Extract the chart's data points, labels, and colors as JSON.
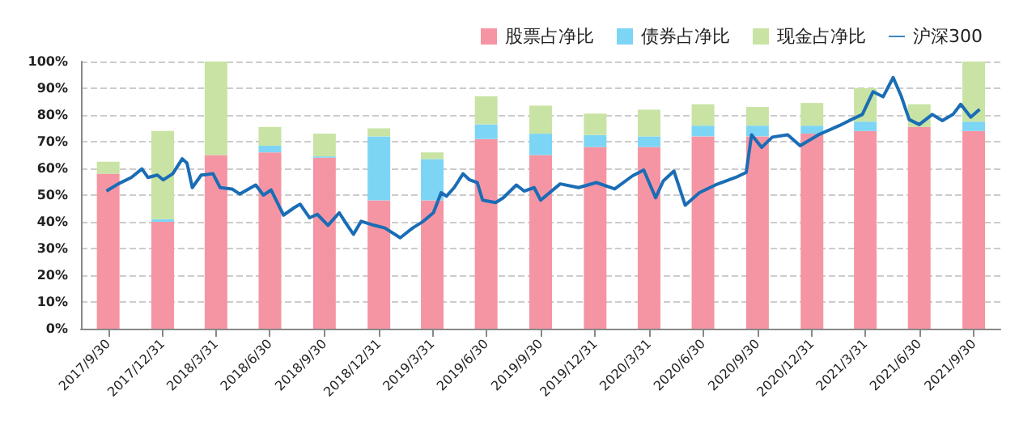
{
  "chart_data": {
    "type": "bar",
    "stacked": true,
    "x": [
      "2017-09-30",
      "2017-12-31",
      "2018-03-31",
      "2018-06-30",
      "2018-09-30",
      "2018-12-31",
      "2019-03-31",
      "2019-06-30",
      "2019-09-30",
      "2019-12-31",
      "2020-03-31",
      "2020-06-30",
      "2020-09-30",
      "2020-12-31",
      "2021-03-31",
      "2021-06-30",
      "2021-09-30"
    ],
    "xlim": [
      "2017-08-15",
      "2021-11-14"
    ],
    "xticks": [
      {
        "value": "2017-09-30",
        "label": "2017/9/30"
      },
      {
        "value": "2017-12-31",
        "label": "2017/12/31"
      },
      {
        "value": "2018-03-31",
        "label": "2018/3/31"
      },
      {
        "value": "2018-06-30",
        "label": "2018/6/30"
      },
      {
        "value": "2018-09-30",
        "label": "2018/9/30"
      },
      {
        "value": "2018-12-31",
        "label": "2018/12/31"
      },
      {
        "value": "2019-03-31",
        "label": "2019/3/31"
      },
      {
        "value": "2019-06-30",
        "label": "2019/6/30"
      },
      {
        "value": "2019-09-30",
        "label": "2019/9/30"
      },
      {
        "value": "2019-12-31",
        "label": "2019/12/31"
      },
      {
        "value": "2020-03-31",
        "label": "2020/3/31"
      },
      {
        "value": "2020-06-30",
        "label": "2020/6/30"
      },
      {
        "value": "2020-09-30",
        "label": "2020/9/30"
      },
      {
        "value": "2020-12-31",
        "label": "2020/12/31"
      },
      {
        "value": "2021-03-31",
        "label": "2021/3/31"
      },
      {
        "value": "2021-06-30",
        "label": "2021/6/30"
      },
      {
        "value": "2021-09-30",
        "label": "2021/9/30"
      }
    ],
    "series": [
      {
        "name": "股票占净比",
        "color": "#f595a3",
        "values": [
          58,
          40,
          65,
          66,
          64,
          48,
          48,
          71,
          65,
          68,
          68,
          72,
          72,
          73,
          74,
          75.5,
          74
        ]
      },
      {
        "name": "债券占净比",
        "color": "#7dd5f5",
        "values": [
          0,
          1,
          0,
          2.5,
          0.5,
          24,
          15.5,
          5.5,
          8,
          4.5,
          4,
          4,
          4,
          3,
          3.5,
          0,
          3.5
        ]
      },
      {
        "name": "现金占净比",
        "color": "#c8e3a3",
        "values": [
          4.5,
          33,
          35,
          7,
          8.5,
          3,
          2.5,
          10.5,
          10.5,
          8,
          10,
          8,
          7,
          8.5,
          12.5,
          8.5,
          22.5
        ]
      },
      {
        "name": "沪深300",
        "type": "line",
        "color": "#1a6db5",
        "x": [
          "2017-09-27",
          "2017-10-17",
          "2017-11-08",
          "2017-11-26",
          "2017-12-06",
          "2017-12-22",
          "2018-01-01",
          "2018-01-17",
          "2018-02-02",
          "2018-02-10",
          "2018-02-19",
          "2018-03-06",
          "2018-03-26",
          "2018-04-07",
          "2018-04-27",
          "2018-05-10",
          "2018-06-06",
          "2018-06-19",
          "2018-07-02",
          "2018-07-23",
          "2018-08-10",
          "2018-08-20",
          "2018-09-05",
          "2018-09-18",
          "2018-10-06",
          "2018-10-25",
          "2018-11-05",
          "2018-11-18",
          "2018-12-01",
          "2018-12-23",
          "2019-01-10",
          "2019-02-05",
          "2019-02-26",
          "2019-03-16",
          "2019-04-02",
          "2019-04-15",
          "2019-04-24",
          "2019-05-07",
          "2019-05-22",
          "2019-06-02",
          "2019-06-15",
          "2019-06-24",
          "2019-07-16",
          "2019-07-29",
          "2019-08-20",
          "2019-09-02",
          "2019-09-19",
          "2019-09-30",
          "2019-11-02",
          "2019-12-03",
          "2020-01-02",
          "2020-02-02",
          "2020-03-03",
          "2020-03-22",
          "2020-04-11",
          "2020-04-24",
          "2020-05-12",
          "2020-05-31",
          "2020-06-24",
          "2020-07-21",
          "2020-08-24",
          "2020-09-11",
          "2020-09-20",
          "2020-10-07",
          "2020-10-25",
          "2020-11-20",
          "2020-12-11",
          "2021-01-11",
          "2021-02-15",
          "2021-03-04",
          "2021-03-26",
          "2021-04-13",
          "2021-04-30",
          "2021-05-17",
          "2021-05-31",
          "2021-06-13",
          "2021-06-30",
          "2021-07-22",
          "2021-08-08",
          "2021-08-26",
          "2021-09-08",
          "2021-09-25",
          "2021-10-10"
        ],
        "values": [
          51.5,
          54.2,
          56.6,
          59.8,
          56.6,
          57.5,
          55.7,
          58,
          63.6,
          62,
          52.8,
          57.5,
          58,
          52.8,
          52.3,
          50.4,
          53.8,
          50,
          51.9,
          42.5,
          45.3,
          46.6,
          41.5,
          42.8,
          38.7,
          43.4,
          39.6,
          35.3,
          40.2,
          38.7,
          37.7,
          34,
          37.7,
          40.2,
          43.4,
          50.9,
          49.6,
          52.8,
          58,
          55.7,
          54.7,
          48.1,
          47.2,
          49,
          53.8,
          51.5,
          52.8,
          48.1,
          54.2,
          52.8,
          54.7,
          52.3,
          57.2,
          59.4,
          49,
          55.3,
          59,
          46.2,
          50.9,
          53.8,
          56.6,
          58.5,
          72.6,
          67.9,
          71.7,
          72.6,
          68.5,
          72.6,
          76,
          77.9,
          80.2,
          88.7,
          86.8,
          94,
          86.8,
          78.3,
          76.4,
          80.2,
          77.9,
          80.2,
          84,
          79.2,
          82.1
        ]
      }
    ],
    "ylim": [
      0,
      100
    ],
    "yticks": [
      {
        "value": 0,
        "label": "0%"
      },
      {
        "value": 10,
        "label": "10%"
      },
      {
        "value": 20,
        "label": "20%"
      },
      {
        "value": 30,
        "label": "30%"
      },
      {
        "value": 40,
        "label": "40%"
      },
      {
        "value": 50,
        "label": "50%"
      },
      {
        "value": 60,
        "label": "60%"
      },
      {
        "value": 70,
        "label": "70%"
      },
      {
        "value": 80,
        "label": "80%"
      },
      {
        "value": 90,
        "label": "90%"
      },
      {
        "value": 100,
        "label": "100%"
      }
    ],
    "grid": "y",
    "legend": "top right",
    "marker": "none"
  }
}
